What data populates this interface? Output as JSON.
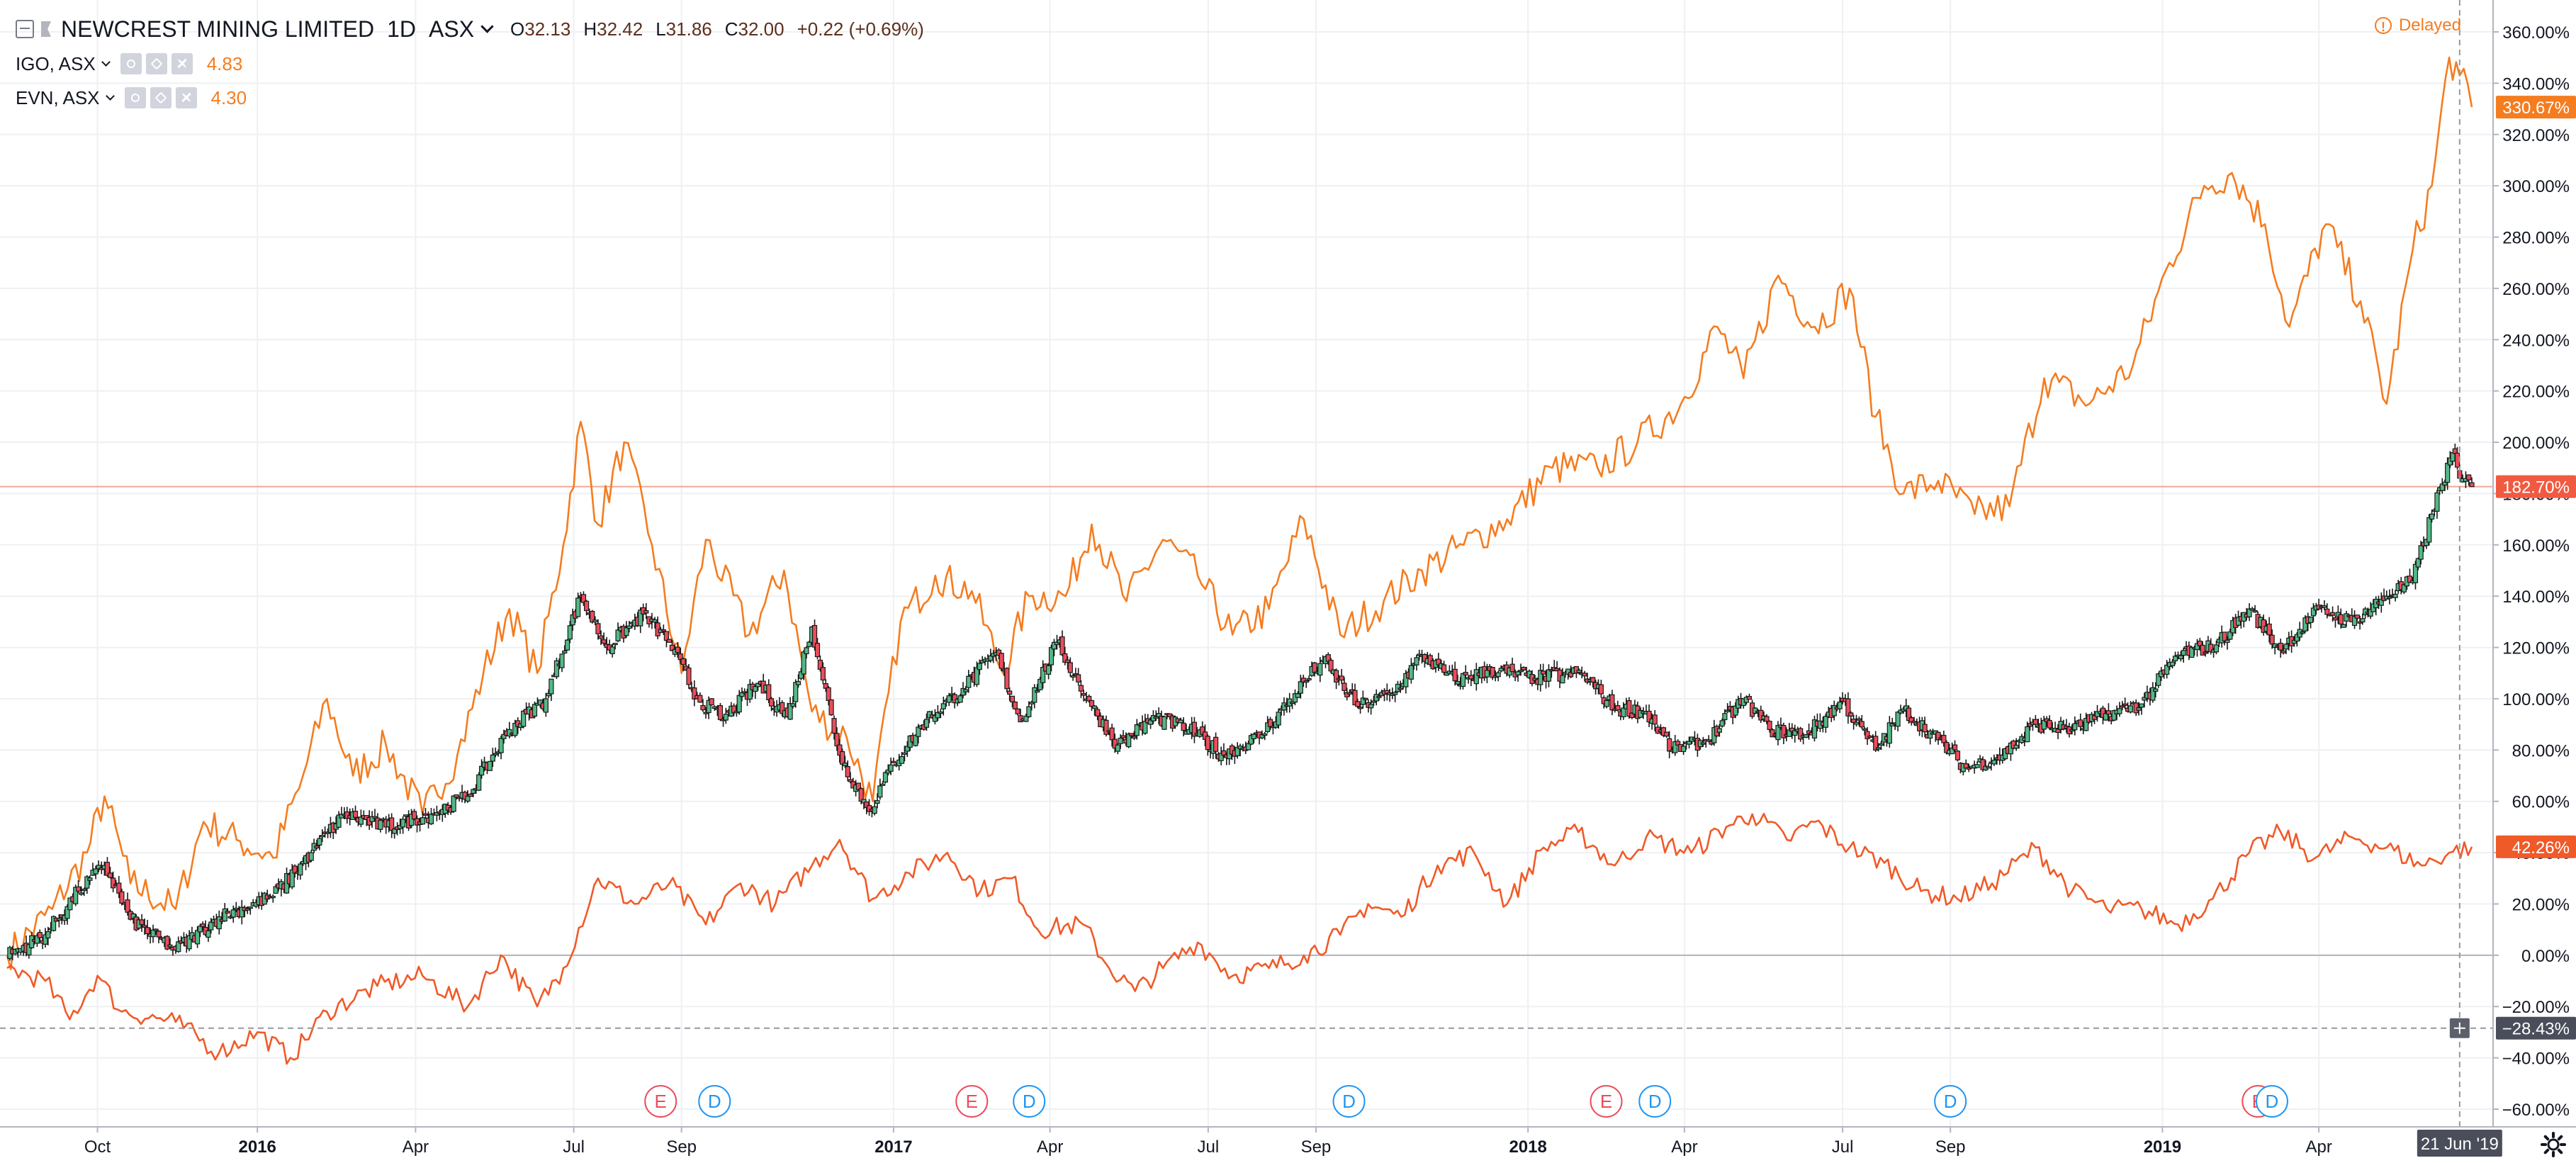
{
  "header": {
    "symbol_title": "NEWCREST MINING LIMITED",
    "interval": "1D",
    "exchange": "ASX",
    "ohlc": [
      {
        "key": "O",
        "value": "32.13"
      },
      {
        "key": "H",
        "value": "32.42"
      },
      {
        "key": "L",
        "value": "31.86"
      },
      {
        "key": "C",
        "value": "32.00"
      }
    ],
    "change": "+0.22 (+0.69%)",
    "delayed_label": "Delayed",
    "icons": [
      "collapse-icon",
      "flag-icon",
      "chevron-down-icon",
      "warning-icon",
      "settings-icon"
    ]
  },
  "compare_symbols": [
    {
      "name": "IGO, ASX",
      "value": "4.83"
    },
    {
      "name": "EVN, ASX",
      "value": "4.30"
    }
  ],
  "colors": {
    "up": "#53b987",
    "down": "#eb4d5c",
    "candle_outline": "#1a1a1a",
    "igo_line": "#f57c1f",
    "evn_line": "#f05a28",
    "earnings": "#eb4d5c",
    "dividend": "#2196f3",
    "grid": "#eef0f3",
    "crosshair": "#9598a1"
  },
  "chart_data": {
    "type": "line",
    "scale": "percentage",
    "y_unit": "%",
    "ylim": [
      -60,
      365
    ],
    "yticks": [
      360,
      340,
      320,
      300,
      280,
      260,
      240,
      220,
      200,
      180,
      160,
      140,
      120,
      100,
      80,
      60,
      40,
      20,
      0,
      -20,
      -40,
      -60
    ],
    "ytick_labels": [
      "360.00%",
      "340.00%",
      "320.00%",
      "300.00%",
      "280.00%",
      "260.00%",
      "240.00%",
      "220.00%",
      "200.00%",
      "180.00%",
      "160.00%",
      "140.00%",
      "120.00%",
      "100.00%",
      "80.00%",
      "60.00%",
      "40.00%",
      "20.00%",
      "0.00%",
      "−20.00%",
      "−40.00%",
      "−60.00%"
    ],
    "xlim": [
      "2015-08-10",
      "2019-06-28"
    ],
    "xticks": [
      {
        "date": "2015-10-01",
        "label": "Oct",
        "bold": false
      },
      {
        "date": "2016-01-01",
        "label": "2016",
        "bold": true
      },
      {
        "date": "2016-04-01",
        "label": "Apr",
        "bold": false
      },
      {
        "date": "2016-07-01",
        "label": "Jul",
        "bold": false
      },
      {
        "date": "2016-09-01",
        "label": "Sep",
        "bold": false
      },
      {
        "date": "2017-01-01",
        "label": "2017",
        "bold": true
      },
      {
        "date": "2017-04-01",
        "label": "Apr",
        "bold": false
      },
      {
        "date": "2017-07-01",
        "label": "Jul",
        "bold": false
      },
      {
        "date": "2017-09-01",
        "label": "Sep",
        "bold": false
      },
      {
        "date": "2018-01-01",
        "label": "2018",
        "bold": true
      },
      {
        "date": "2018-04-01",
        "label": "Apr",
        "bold": false
      },
      {
        "date": "2018-07-01",
        "label": "Jul",
        "bold": false
      },
      {
        "date": "2018-09-01",
        "label": "Sep",
        "bold": false
      },
      {
        "date": "2019-01-01",
        "label": "2019",
        "bold": true
      },
      {
        "date": "2019-04-01",
        "label": "Apr",
        "bold": false
      }
    ],
    "main_series": {
      "name": "NEWCREST MINING LIMITED",
      "style": "candles",
      "points": [
        [
          "2015-08-10",
          0
        ],
        [
          "2015-09-01",
          8
        ],
        [
          "2015-09-20",
          25
        ],
        [
          "2015-10-05",
          35
        ],
        [
          "2015-10-20",
          14
        ],
        [
          "2015-11-15",
          2
        ],
        [
          "2015-12-10",
          15
        ],
        [
          "2016-01-10",
          23
        ],
        [
          "2016-02-01",
          40
        ],
        [
          "2016-02-20",
          55
        ],
        [
          "2016-03-15",
          50
        ],
        [
          "2016-04-10",
          55
        ],
        [
          "2016-05-01",
          62
        ],
        [
          "2016-05-25",
          88
        ],
        [
          "2016-06-15",
          100
        ],
        [
          "2016-07-05",
          140
        ],
        [
          "2016-07-20",
          120
        ],
        [
          "2016-08-10",
          133
        ],
        [
          "2016-08-25",
          122
        ],
        [
          "2016-09-10",
          100
        ],
        [
          "2016-09-25",
          92
        ],
        [
          "2016-10-15",
          106
        ],
        [
          "2016-11-01",
          93
        ],
        [
          "2016-11-15",
          128
        ],
        [
          "2016-12-01",
          78
        ],
        [
          "2016-12-18",
          56
        ],
        [
          "2017-01-01",
          75
        ],
        [
          "2017-01-20",
          92
        ],
        [
          "2017-02-10",
          104
        ],
        [
          "2017-03-01",
          118
        ],
        [
          "2017-03-15",
          91
        ],
        [
          "2017-04-05",
          122
        ],
        [
          "2017-04-25",
          97
        ],
        [
          "2017-05-10",
          82
        ],
        [
          "2017-06-01",
          93
        ],
        [
          "2017-06-20",
          88
        ],
        [
          "2017-07-10",
          78
        ],
        [
          "2017-08-01",
          86
        ],
        [
          "2017-08-20",
          102
        ],
        [
          "2017-09-05",
          115
        ],
        [
          "2017-09-25",
          97
        ],
        [
          "2017-10-15",
          102
        ],
        [
          "2017-11-01",
          117
        ],
        [
          "2017-11-20",
          107
        ],
        [
          "2017-12-10",
          111
        ],
        [
          "2018-01-05",
          108
        ],
        [
          "2018-02-01",
          110
        ],
        [
          "2018-02-20",
          96
        ],
        [
          "2018-03-10",
          95
        ],
        [
          "2018-03-25",
          80
        ],
        [
          "2018-04-15",
          84
        ],
        [
          "2018-05-05",
          100
        ],
        [
          "2018-05-20",
          88
        ],
        [
          "2018-06-10",
          86
        ],
        [
          "2018-07-01",
          99
        ],
        [
          "2018-07-20",
          80
        ],
        [
          "2018-08-05",
          96
        ],
        [
          "2018-08-25",
          84
        ],
        [
          "2018-09-10",
          73
        ],
        [
          "2018-10-01",
          78
        ],
        [
          "2018-10-20",
          90
        ],
        [
          "2018-11-10",
          88
        ],
        [
          "2018-12-01",
          94
        ],
        [
          "2018-12-20",
          98
        ],
        [
          "2019-01-10",
          117
        ],
        [
          "2019-02-01",
          121
        ],
        [
          "2019-02-20",
          135
        ],
        [
          "2019-03-10",
          119
        ],
        [
          "2019-04-01",
          135
        ],
        [
          "2019-04-20",
          130
        ],
        [
          "2019-05-10",
          140
        ],
        [
          "2019-05-25",
          146
        ],
        [
          "2019-06-05",
          172
        ],
        [
          "2019-06-17",
          196
        ],
        [
          "2019-06-21",
          186
        ],
        [
          "2019-06-28",
          182.7
        ]
      ],
      "last_label": "182.70%"
    },
    "series": [
      {
        "name": "IGO, ASX",
        "points": [
          [
            "2015-08-10",
            0
          ],
          [
            "2015-09-05",
            18
          ],
          [
            "2015-09-25",
            40
          ],
          [
            "2015-10-05",
            62
          ],
          [
            "2015-10-20",
            28
          ],
          [
            "2015-11-15",
            18
          ],
          [
            "2015-12-01",
            52
          ],
          [
            "2015-12-20",
            45
          ],
          [
            "2016-01-10",
            38
          ],
          [
            "2016-01-25",
            65
          ],
          [
            "2016-02-10",
            100
          ],
          [
            "2016-02-25",
            70
          ],
          [
            "2016-03-15",
            82
          ],
          [
            "2016-04-05",
            55
          ],
          [
            "2016-04-25",
            78
          ],
          [
            "2016-05-10",
            110
          ],
          [
            "2016-05-25",
            135
          ],
          [
            "2016-06-10",
            110
          ],
          [
            "2016-06-25",
            160
          ],
          [
            "2016-07-05",
            208
          ],
          [
            "2016-07-15",
            168
          ],
          [
            "2016-07-30",
            200
          ],
          [
            "2016-08-15",
            160
          ],
          [
            "2016-09-01",
            110
          ],
          [
            "2016-09-15",
            162
          ],
          [
            "2016-10-10",
            125
          ],
          [
            "2016-10-30",
            150
          ],
          [
            "2016-11-15",
            95
          ],
          [
            "2016-12-05",
            85
          ],
          [
            "2016-12-20",
            60
          ],
          [
            "2017-01-05",
            130
          ],
          [
            "2017-01-25",
            148
          ],
          [
            "2017-02-15",
            142
          ],
          [
            "2017-03-05",
            110
          ],
          [
            "2017-03-20",
            140
          ],
          [
            "2017-04-10",
            140
          ],
          [
            "2017-04-25",
            168
          ],
          [
            "2017-05-15",
            138
          ],
          [
            "2017-06-05",
            162
          ],
          [
            "2017-06-25",
            148
          ],
          [
            "2017-07-15",
            125
          ],
          [
            "2017-08-05",
            135
          ],
          [
            "2017-08-25",
            170
          ],
          [
            "2017-09-15",
            125
          ],
          [
            "2017-10-10",
            138
          ],
          [
            "2017-11-01",
            150
          ],
          [
            "2017-11-25",
            160
          ],
          [
            "2017-12-20",
            170
          ],
          [
            "2018-01-15",
            190
          ],
          [
            "2018-02-10",
            190
          ],
          [
            "2018-03-05",
            200
          ],
          [
            "2018-03-30",
            215
          ],
          [
            "2018-04-20",
            245
          ],
          [
            "2018-05-05",
            225
          ],
          [
            "2018-05-25",
            265
          ],
          [
            "2018-06-15",
            245
          ],
          [
            "2018-07-05",
            260
          ],
          [
            "2018-07-20",
            210
          ],
          [
            "2018-08-05",
            180
          ],
          [
            "2018-08-25",
            185
          ],
          [
            "2018-09-15",
            172
          ],
          [
            "2018-10-05",
            175
          ],
          [
            "2018-10-25",
            225
          ],
          [
            "2018-11-20",
            215
          ],
          [
            "2018-12-15",
            230
          ],
          [
            "2019-01-05",
            270
          ],
          [
            "2019-01-25",
            300
          ],
          [
            "2019-02-10",
            305
          ],
          [
            "2019-03-01",
            285
          ],
          [
            "2019-03-15",
            245
          ],
          [
            "2019-04-05",
            285
          ],
          [
            "2019-04-25",
            255
          ],
          [
            "2019-05-10",
            215
          ],
          [
            "2019-05-25",
            275
          ],
          [
            "2019-06-05",
            300
          ],
          [
            "2019-06-15",
            350
          ],
          [
            "2019-06-21",
            343
          ],
          [
            "2019-06-28",
            330.67
          ]
        ],
        "last_label": "330.67%"
      },
      {
        "name": "EVN, ASX",
        "points": [
          [
            "2015-08-10",
            -5
          ],
          [
            "2015-09-01",
            -10
          ],
          [
            "2015-09-15",
            -25
          ],
          [
            "2015-10-01",
            -8
          ],
          [
            "2015-10-15",
            -22
          ],
          [
            "2015-11-15",
            -26
          ],
          [
            "2015-12-10",
            -38
          ],
          [
            "2016-01-01",
            -30
          ],
          [
            "2016-01-20",
            -40
          ],
          [
            "2016-02-10",
            -22
          ],
          [
            "2016-03-10",
            -12
          ],
          [
            "2016-04-05",
            -8
          ],
          [
            "2016-05-01",
            -20
          ],
          [
            "2016-05-20",
            0
          ],
          [
            "2016-06-10",
            -20
          ],
          [
            "2016-06-25",
            -5
          ],
          [
            "2016-07-15",
            30
          ],
          [
            "2016-08-05",
            20
          ],
          [
            "2016-08-25",
            28
          ],
          [
            "2016-09-15",
            12
          ],
          [
            "2016-10-05",
            28
          ],
          [
            "2016-10-25",
            20
          ],
          [
            "2016-11-15",
            35
          ],
          [
            "2016-12-01",
            45
          ],
          [
            "2016-12-20",
            22
          ],
          [
            "2017-01-10",
            32
          ],
          [
            "2017-02-01",
            40
          ],
          [
            "2017-02-20",
            25
          ],
          [
            "2017-03-10",
            30
          ],
          [
            "2017-03-25",
            10
          ],
          [
            "2017-04-20",
            12
          ],
          [
            "2017-05-05",
            -5
          ],
          [
            "2017-05-20",
            -14
          ],
          [
            "2017-06-05",
            -5
          ],
          [
            "2017-06-25",
            5
          ],
          [
            "2017-07-15",
            -8
          ],
          [
            "2017-08-05",
            -5
          ],
          [
            "2017-08-25",
            0
          ],
          [
            "2017-09-15",
            8
          ],
          [
            "2017-10-01",
            20
          ],
          [
            "2017-10-20",
            15
          ],
          [
            "2017-11-10",
            35
          ],
          [
            "2017-12-01",
            40
          ],
          [
            "2017-12-20",
            20
          ],
          [
            "2018-01-10",
            42
          ],
          [
            "2018-01-30",
            48
          ],
          [
            "2018-02-20",
            35
          ],
          [
            "2018-03-10",
            46
          ],
          [
            "2018-04-05",
            40
          ],
          [
            "2018-04-25",
            50
          ],
          [
            "2018-05-10",
            55
          ],
          [
            "2018-05-30",
            45
          ],
          [
            "2018-06-15",
            52
          ],
          [
            "2018-07-05",
            42
          ],
          [
            "2018-07-25",
            36
          ],
          [
            "2018-08-15",
            25
          ],
          [
            "2018-09-05",
            22
          ],
          [
            "2018-09-25",
            28
          ],
          [
            "2018-10-20",
            42
          ],
          [
            "2018-11-10",
            25
          ],
          [
            "2018-11-30",
            18
          ],
          [
            "2018-12-20",
            18
          ],
          [
            "2019-01-10",
            12
          ],
          [
            "2019-01-30",
            22
          ],
          [
            "2019-02-20",
            40
          ],
          [
            "2019-03-10",
            48
          ],
          [
            "2019-03-30",
            38
          ],
          [
            "2019-04-20",
            46
          ],
          [
            "2019-05-10",
            42
          ],
          [
            "2019-05-30",
            35
          ],
          [
            "2019-06-15",
            40
          ],
          [
            "2019-06-28",
            42.26
          ]
        ],
        "last_label": "42.26%"
      }
    ],
    "events": [
      {
        "type": "E",
        "date": "2016-08-20"
      },
      {
        "type": "D",
        "date": "2016-09-20"
      },
      {
        "type": "E",
        "date": "2017-02-15"
      },
      {
        "type": "D",
        "date": "2017-03-20"
      },
      {
        "type": "D",
        "date": "2017-09-20"
      },
      {
        "type": "E",
        "date": "2018-02-15"
      },
      {
        "type": "D",
        "date": "2018-03-15"
      },
      {
        "type": "D",
        "date": "2018-09-01"
      },
      {
        "type": "E",
        "date": "2019-02-25"
      },
      {
        "type": "D",
        "date": "2019-03-05"
      }
    ],
    "crosshair": {
      "date": "2019-06-21",
      "date_label": "21 Jun '19",
      "value": -28.43,
      "value_label": "−28.43%"
    }
  }
}
